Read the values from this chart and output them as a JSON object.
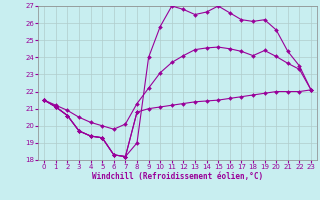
{
  "background_color": "#c8eef0",
  "grid_color": "#b0cccc",
  "line_color": "#990099",
  "xlabel": "Windchill (Refroidissement éolien,°C)",
  "xlim": [
    -0.5,
    23.5
  ],
  "ylim": [
    18,
    27
  ],
  "yticks": [
    18,
    19,
    20,
    21,
    22,
    23,
    24,
    25,
    26,
    27
  ],
  "xticks": [
    0,
    1,
    2,
    3,
    4,
    5,
    6,
    7,
    8,
    9,
    10,
    11,
    12,
    13,
    14,
    15,
    16,
    17,
    18,
    19,
    20,
    21,
    22,
    23
  ],
  "series": [
    [
      21.5,
      21.1,
      20.6,
      19.7,
      19.4,
      19.3,
      18.3,
      18.2,
      20.8,
      null,
      null,
      null,
      null,
      null,
      null,
      null,
      null,
      null,
      null,
      null,
      null,
      null,
      null,
      null
    ],
    [
      21.5,
      21.2,
      20.9,
      20.5,
      20.2,
      20.0,
      19.8,
      20.1,
      21.3,
      22.2,
      23.1,
      23.7,
      24.1,
      24.45,
      24.55,
      24.6,
      24.5,
      24.35,
      24.1,
      24.4,
      24.05,
      23.65,
      23.3,
      22.1
    ],
    [
      21.5,
      21.1,
      20.6,
      19.7,
      19.4,
      19.3,
      18.3,
      18.2,
      19.0,
      24.0,
      25.8,
      27.0,
      26.8,
      26.5,
      26.65,
      27.0,
      26.6,
      26.2,
      26.1,
      26.2,
      25.6,
      24.35,
      23.5,
      22.1
    ]
  ],
  "series_bottom": [
    21.5,
    21.1,
    20.6,
    19.7,
    19.4,
    19.3,
    18.3,
    18.2,
    20.8,
    21.0,
    21.1,
    21.2,
    21.3,
    21.4,
    21.45,
    21.5,
    21.6,
    21.7,
    21.8,
    21.9,
    22.0,
    22.0,
    22.0,
    22.1
  ]
}
